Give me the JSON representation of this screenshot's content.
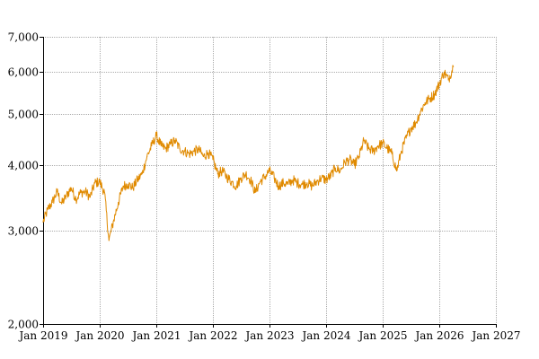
{
  "chart_data": {
    "type": "line",
    "title": "",
    "xlabel": "",
    "ylabel": "",
    "y_scale": "log",
    "ylim": [
      2000,
      7000
    ],
    "xlim": [
      "2019-01-01",
      "2027-01-01"
    ],
    "grid": true,
    "legend": "none",
    "colors": {
      "line": "#E08A00",
      "grid": "#aaaaaa",
      "axis": "#000000",
      "background": "#ffffff"
    },
    "y_ticks": [
      {
        "value": 2000,
        "label": "2,000"
      },
      {
        "value": 3000,
        "label": "3,000"
      },
      {
        "value": 4000,
        "label": "4,000"
      },
      {
        "value": 5000,
        "label": "5,000"
      },
      {
        "value": 6000,
        "label": "6,000"
      },
      {
        "value": 7000,
        "label": "7,000"
      }
    ],
    "x_ticks": [
      {
        "value": "2019-01-01",
        "label": "Jan 2019"
      },
      {
        "value": "2020-01-01",
        "label": "Jan 2020"
      },
      {
        "value": "2021-01-01",
        "label": "Jan 2021"
      },
      {
        "value": "2022-01-01",
        "label": "Jan 2022"
      },
      {
        "value": "2023-01-01",
        "label": "Jan 2023"
      },
      {
        "value": "2024-01-01",
        "label": "Jan 2024"
      },
      {
        "value": "2025-01-01",
        "label": "Jan 2025"
      },
      {
        "value": "2026-01-01",
        "label": "Jan 2026"
      },
      {
        "value": "2027-01-01",
        "label": "Jan 2027"
      }
    ],
    "series": [
      {
        "points": [
          [
            "2019-01-01",
            3120
          ],
          [
            "2019-02-01",
            3300
          ],
          [
            "2019-03-01",
            3400
          ],
          [
            "2019-04-01",
            3560
          ],
          [
            "2019-05-01",
            3380
          ],
          [
            "2019-06-01",
            3500
          ],
          [
            "2019-07-01",
            3620
          ],
          [
            "2019-08-01",
            3450
          ],
          [
            "2019-09-01",
            3550
          ],
          [
            "2019-10-01",
            3560
          ],
          [
            "2019-11-01",
            3480
          ],
          [
            "2019-12-01",
            3700
          ],
          [
            "2020-01-01",
            3720
          ],
          [
            "2020-02-01",
            3550
          ],
          [
            "2020-03-01",
            2880
          ],
          [
            "2020-04-01",
            3150
          ],
          [
            "2020-05-01",
            3400
          ],
          [
            "2020-06-01",
            3650
          ],
          [
            "2020-07-01",
            3680
          ],
          [
            "2020-08-01",
            3620
          ],
          [
            "2020-09-01",
            3750
          ],
          [
            "2020-10-01",
            3850
          ],
          [
            "2020-11-01",
            4150
          ],
          [
            "2020-12-01",
            4350
          ],
          [
            "2021-01-01",
            4550
          ],
          [
            "2021-02-01",
            4350
          ],
          [
            "2021-03-01",
            4300
          ],
          [
            "2021-04-01",
            4380
          ],
          [
            "2021-05-01",
            4450
          ],
          [
            "2021-06-01",
            4300
          ],
          [
            "2021-07-01",
            4250
          ],
          [
            "2021-08-01",
            4200
          ],
          [
            "2021-09-01",
            4250
          ],
          [
            "2021-10-01",
            4280
          ],
          [
            "2021-11-01",
            4150
          ],
          [
            "2021-12-01",
            4220
          ],
          [
            "2022-01-01",
            4100
          ],
          [
            "2022-02-01",
            3850
          ],
          [
            "2022-03-01",
            3900
          ],
          [
            "2022-04-01",
            3800
          ],
          [
            "2022-05-01",
            3720
          ],
          [
            "2022-06-01",
            3650
          ],
          [
            "2022-07-01",
            3780
          ],
          [
            "2022-08-01",
            3850
          ],
          [
            "2022-09-01",
            3750
          ],
          [
            "2022-10-01",
            3550
          ],
          [
            "2022-11-01",
            3720
          ],
          [
            "2022-12-01",
            3800
          ],
          [
            "2023-01-01",
            3900
          ],
          [
            "2023-02-01",
            3780
          ],
          [
            "2023-03-01",
            3650
          ],
          [
            "2023-04-01",
            3700
          ],
          [
            "2023-05-01",
            3680
          ],
          [
            "2023-06-01",
            3750
          ],
          [
            "2023-07-01",
            3700
          ],
          [
            "2023-08-01",
            3680
          ],
          [
            "2023-09-01",
            3700
          ],
          [
            "2023-10-01",
            3650
          ],
          [
            "2023-11-01",
            3720
          ],
          [
            "2023-12-01",
            3780
          ],
          [
            "2024-01-01",
            3750
          ],
          [
            "2024-02-01",
            3820
          ],
          [
            "2024-03-01",
            3950
          ],
          [
            "2024-04-01",
            3900
          ],
          [
            "2024-05-01",
            4050
          ],
          [
            "2024-06-01",
            4100
          ],
          [
            "2024-07-01",
            4000
          ],
          [
            "2024-08-01",
            4150
          ],
          [
            "2024-09-01",
            4450
          ],
          [
            "2024-10-01",
            4300
          ],
          [
            "2024-11-01",
            4250
          ],
          [
            "2024-12-01",
            4350
          ],
          [
            "2025-01-01",
            4400
          ],
          [
            "2025-02-01",
            4300
          ],
          [
            "2025-03-01",
            4200
          ],
          [
            "2025-04-01",
            3900
          ],
          [
            "2025-05-01",
            4250
          ],
          [
            "2025-06-01",
            4500
          ],
          [
            "2025-07-01",
            4700
          ],
          [
            "2025-08-01",
            4800
          ],
          [
            "2025-09-01",
            5050
          ],
          [
            "2025-10-01",
            5250
          ],
          [
            "2025-11-01",
            5350
          ],
          [
            "2025-12-01",
            5450
          ],
          [
            "2026-01-01",
            5700
          ],
          [
            "2026-02-01",
            6000
          ],
          [
            "2026-03-01",
            5800
          ],
          [
            "2026-04-01",
            6150
          ]
        ]
      }
    ]
  }
}
